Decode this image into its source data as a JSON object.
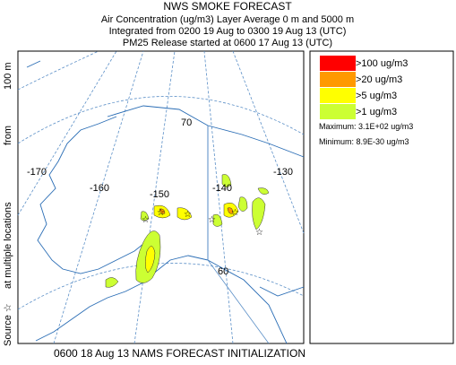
{
  "header": {
    "title": "NWS SMOKE FORECAST",
    "lines": [
      "Air Concentration (ug/m3) Layer Average    0 m and  5000 m",
      "Integrated from 0200 19 Aug to 0300 19 Aug 13 (UTC)",
      "PM25 Release started at 0600 17 Aug 13 (UTC)"
    ]
  },
  "side_label": [
    "Source ☆",
    "at multiple locations",
    "from",
    "100 m"
  ],
  "map": {
    "graticule_labels": [
      "-170",
      "-160",
      "-150",
      "-140",
      "-130",
      "70",
      "60"
    ]
  },
  "legend": {
    "items": [
      {
        "label": ">100 ug/m3",
        "color": "#ff0000"
      },
      {
        "label": ">20 ug/m3",
        "color": "#ff9900"
      },
      {
        "label": ">5 ug/m3",
        "color": "#ffff00"
      },
      {
        "label": ">1 ug/m3",
        "color": "#ccff33"
      }
    ],
    "maximum": "Maximum: 3.1E+02 ug/m3",
    "minimum": "Minimum: 8.9E-30 ug/m3"
  },
  "footer": "0600 18 Aug 13 NAMS FORECAST INITIALIZATION"
}
